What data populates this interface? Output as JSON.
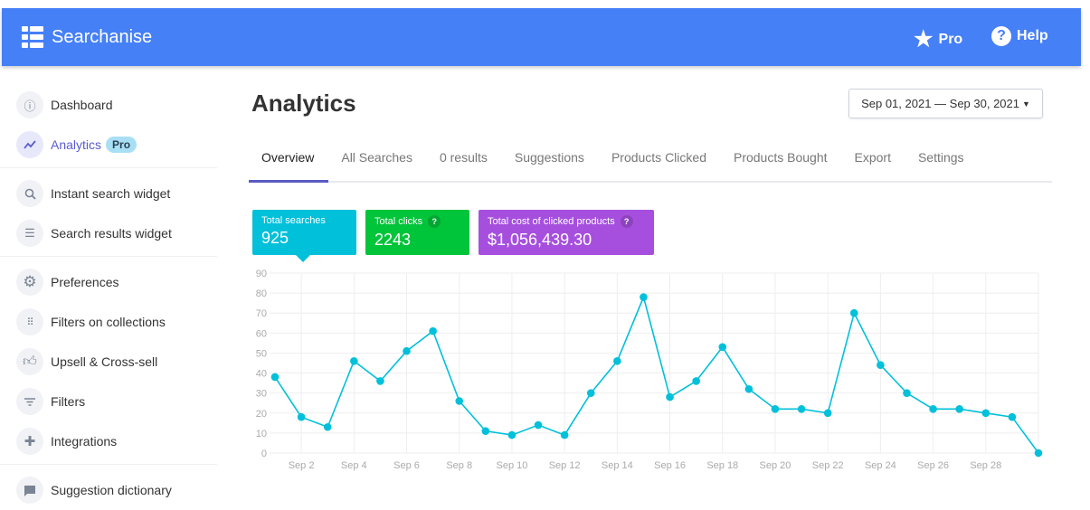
{
  "header": {
    "brand": "Searchanise",
    "pro_label": "Pro",
    "help_label": "Help",
    "color": "#4680f7"
  },
  "sidebar": {
    "items": [
      {
        "label": "Dashboard",
        "icon": "info-icon"
      },
      {
        "label": "Analytics",
        "icon": "trend-icon",
        "badge": "Pro",
        "active": true
      },
      {
        "label": "Instant search widget",
        "icon": "search-icon"
      },
      {
        "label": "Search results widget",
        "icon": "list-icon"
      },
      {
        "label": "Preferences",
        "icon": "gear-icon"
      },
      {
        "label": "Filters on collections",
        "icon": "grid-icon"
      },
      {
        "label": "Upsell & Cross-sell",
        "icon": "thumbs-up-icon"
      },
      {
        "label": "Filters",
        "icon": "filter-icon"
      },
      {
        "label": "Integrations",
        "icon": "puzzle-icon"
      },
      {
        "label": "Suggestion dictionary",
        "icon": "chat-icon"
      }
    ]
  },
  "main": {
    "title": "Analytics",
    "date_range": "Sep 01, 2021 — Sep 30, 2021",
    "tabs": [
      {
        "label": "Overview",
        "active": true
      },
      {
        "label": "All Searches"
      },
      {
        "label": "0 results"
      },
      {
        "label": "Suggestions"
      },
      {
        "label": "Products Clicked"
      },
      {
        "label": "Products Bought"
      },
      {
        "label": "Export"
      },
      {
        "label": "Settings"
      }
    ],
    "cards": [
      {
        "label": "Total searches",
        "value": "925",
        "color": "#00c0da"
      },
      {
        "label": "Total clicks",
        "value": "2243",
        "color": "#00c43a",
        "help": "?"
      },
      {
        "label": "Total cost of clicked products",
        "value": "$1,056,439.30",
        "color": "#a64fde",
        "help": "?"
      }
    ]
  },
  "chart_data": {
    "type": "line",
    "x": [
      "Sep 1",
      "Sep 2",
      "Sep 3",
      "Sep 4",
      "Sep 5",
      "Sep 6",
      "Sep 7",
      "Sep 8",
      "Sep 9",
      "Sep 10",
      "Sep 11",
      "Sep 12",
      "Sep 13",
      "Sep 14",
      "Sep 15",
      "Sep 16",
      "Sep 17",
      "Sep 18",
      "Sep 19",
      "Sep 20",
      "Sep 21",
      "Sep 22",
      "Sep 23",
      "Sep 24",
      "Sep 25",
      "Sep 26",
      "Sep 27",
      "Sep 28",
      "Sep 29",
      "Sep 30"
    ],
    "values": [
      38,
      18,
      13,
      46,
      36,
      51,
      61,
      26,
      11,
      9,
      14,
      9,
      30,
      46,
      78,
      28,
      36,
      53,
      32,
      22,
      22,
      20,
      70,
      44,
      30,
      22,
      22,
      20,
      18,
      0
    ],
    "x_tick_labels": [
      "Sep 2",
      "Sep 4",
      "Sep 6",
      "Sep 8",
      "Sep 10",
      "Sep 12",
      "Sep 14",
      "Sep 16",
      "Sep 18",
      "Sep 20",
      "Sep 22",
      "Sep 24",
      "Sep 26",
      "Sep 28"
    ],
    "y_ticks": [
      0,
      10,
      20,
      30,
      40,
      50,
      60,
      70,
      80,
      90
    ],
    "ylim": [
      0,
      90
    ],
    "grid": true,
    "color": "#00c0da"
  }
}
